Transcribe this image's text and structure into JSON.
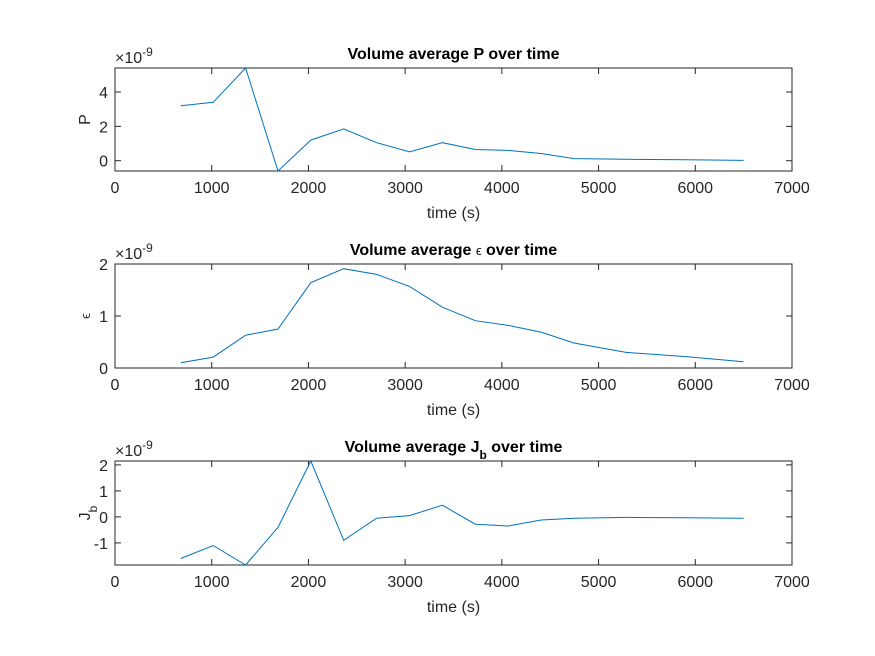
{
  "chart_data": [
    {
      "type": "line",
      "title_parts": [
        {
          "text": "Volume average P over time"
        }
      ],
      "xlabel": "time (s)",
      "ylabel_parts": [
        {
          "text": "P"
        }
      ],
      "y_exponent": "×10",
      "y_exponent_power": "-9",
      "xlim": [
        0,
        7000
      ],
      "ylim": [
        -0.6,
        5.4
      ],
      "xticks": [
        0,
        1000,
        2000,
        3000,
        4000,
        5000,
        6000,
        7000
      ],
      "yticks": [
        0,
        2,
        4
      ],
      "grid": false,
      "series": [
        {
          "color": "#0072bd",
          "x": [
            680,
            1015,
            1350,
            1685,
            2025,
            2365,
            2705,
            3045,
            3385,
            3725,
            4065,
            4405,
            4745,
            5285,
            5905,
            6500
          ],
          "y": [
            3.2,
            3.4,
            5.4,
            -0.6,
            1.2,
            1.85,
            1.05,
            0.52,
            1.05,
            0.65,
            0.6,
            0.42,
            0.12,
            0.08,
            0.05,
            0.02
          ]
        }
      ]
    },
    {
      "type": "line",
      "title_parts": [
        {
          "text": "Volume average "
        },
        {
          "text": "ϵ",
          "style": "symbol"
        },
        {
          "text": " over time"
        }
      ],
      "xlabel": "time (s)",
      "ylabel_parts": [
        {
          "text": "ϵ",
          "style": "symbol"
        }
      ],
      "y_exponent": "×10",
      "y_exponent_power": "-9",
      "xlim": [
        0,
        7000
      ],
      "ylim": [
        0,
        2
      ],
      "xticks": [
        0,
        1000,
        2000,
        3000,
        4000,
        5000,
        6000,
        7000
      ],
      "yticks": [
        0,
        1,
        2
      ],
      "grid": false,
      "series": [
        {
          "color": "#0072bd",
          "x": [
            680,
            1015,
            1350,
            1685,
            2025,
            2365,
            2705,
            3045,
            3385,
            3725,
            4065,
            4405,
            4745,
            5285,
            5905,
            6500
          ],
          "y": [
            0.1,
            0.21,
            0.63,
            0.75,
            1.64,
            1.91,
            1.8,
            1.57,
            1.17,
            0.91,
            0.82,
            0.69,
            0.48,
            0.3,
            0.22,
            0.12
          ]
        }
      ]
    },
    {
      "type": "line",
      "title_parts": [
        {
          "text": "Volume average J"
        },
        {
          "text": "b",
          "style": "sub"
        },
        {
          "text": " over time"
        }
      ],
      "xlabel": "time (s)",
      "ylabel_parts": [
        {
          "text": "J"
        },
        {
          "text": "b",
          "style": "sub"
        }
      ],
      "y_exponent": "×10",
      "y_exponent_power": "-9",
      "xlim": [
        0,
        7000
      ],
      "ylim": [
        -1.85,
        2.15
      ],
      "xticks": [
        0,
        1000,
        2000,
        3000,
        4000,
        5000,
        6000,
        7000
      ],
      "yticks": [
        -1,
        0,
        1,
        2
      ],
      "grid": false,
      "series": [
        {
          "color": "#0072bd",
          "x": [
            680,
            1015,
            1350,
            1685,
            2025,
            2365,
            2705,
            3045,
            3385,
            3725,
            4065,
            4405,
            4745,
            5285,
            5905,
            6500
          ],
          "y": [
            -1.6,
            -1.1,
            -1.85,
            -0.4,
            2.15,
            -0.9,
            -0.05,
            0.05,
            0.45,
            -0.28,
            -0.35,
            -0.12,
            -0.05,
            -0.02,
            -0.03,
            -0.05
          ]
        }
      ]
    }
  ]
}
